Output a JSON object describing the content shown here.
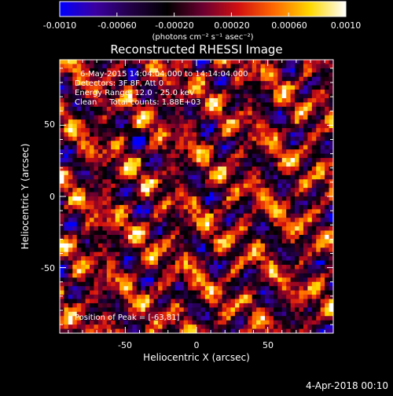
{
  "colorbar": {
    "tick_labels": [
      "-0.0010",
      "-0.00060",
      "-0.00020",
      "0.00020",
      "0.00060",
      "0.0010"
    ],
    "unit_label": "(photons cm⁻² s⁻¹ asec⁻²)",
    "range": [
      -0.001,
      0.001
    ],
    "colors": [
      "#0000ff",
      "#3a00a0",
      "#220044",
      "#000000",
      "#6a0030",
      "#d21010",
      "#ff6a00",
      "#ffd800",
      "#ffffff"
    ]
  },
  "chart_data": {
    "type": "heatmap",
    "title": "Reconstructed RHESSI Image",
    "xlabel": "Heliocentric X (arcsec)",
    "ylabel": "Heliocentric Y (arcsec)",
    "xlim": [
      -96,
      96
    ],
    "ylim": [
      -96,
      96
    ],
    "x_ticks": [
      -50,
      0,
      50
    ],
    "y_ticks": [
      50,
      0,
      -50
    ],
    "x_tick_labels": [
      "-50",
      "0",
      "50"
    ],
    "y_tick_labels": [
      "50",
      "0",
      "-50"
    ],
    "grid_size": 64,
    "peak_position": [
      -63,
      81
    ],
    "info_lines": [
      "6-May-2015 14:04:04.000 to 14:14:04.000",
      "Detectors: 3F 8F, Att 0",
      "Energy Range: 12.0 - 25.0 keV",
      "Clean     Total counts: 1.88E+03"
    ],
    "peak_text": "Position of Peak = [-63,81]"
  },
  "footer": {
    "timestamp": "4-Apr-2018 00:10"
  }
}
